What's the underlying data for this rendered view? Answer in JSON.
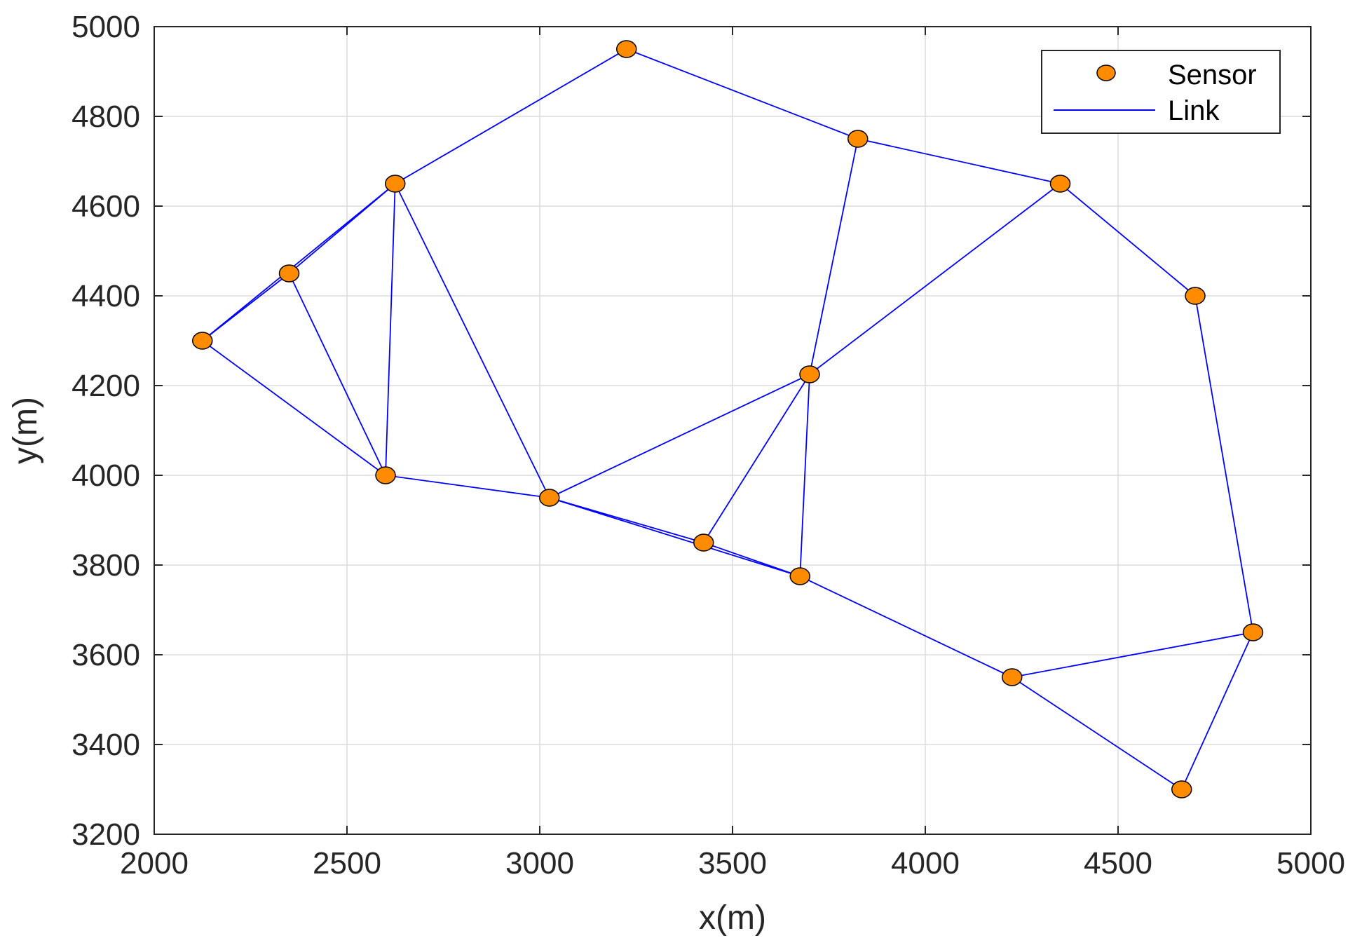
{
  "chart_data": {
    "type": "scatter",
    "xlabel": "x(m)",
    "ylabel": "y(m)",
    "xlim": [
      2000,
      5000
    ],
    "ylim": [
      3200,
      5000
    ],
    "xticks": [
      "2000",
      "2500",
      "3000",
      "3500",
      "4000",
      "4500",
      "5000"
    ],
    "yticks": [
      "3200",
      "3400",
      "3600",
      "3800",
      "4000",
      "4200",
      "4400",
      "4600",
      "4800",
      "5000"
    ],
    "grid": true,
    "legend_position": "top-right",
    "series": [
      {
        "name": "Sensor",
        "marker": "circle",
        "color": "#FF8C00",
        "points": [
          {
            "id": "A",
            "x": 2125,
            "y": 4300
          },
          {
            "id": "B",
            "x": 2350,
            "y": 4450
          },
          {
            "id": "C",
            "x": 2625,
            "y": 4650
          },
          {
            "id": "D",
            "x": 2600,
            "y": 4000
          },
          {
            "id": "E",
            "x": 3025,
            "y": 3950
          },
          {
            "id": "F",
            "x": 3225,
            "y": 4950
          },
          {
            "id": "G",
            "x": 3425,
            "y": 3850
          },
          {
            "id": "H",
            "x": 3675,
            "y": 3775
          },
          {
            "id": "I",
            "x": 3700,
            "y": 4225
          },
          {
            "id": "J",
            "x": 3825,
            "y": 4750
          },
          {
            "id": "K",
            "x": 4225,
            "y": 3550
          },
          {
            "id": "L",
            "x": 4350,
            "y": 4650
          },
          {
            "id": "M",
            "x": 4700,
            "y": 4400
          },
          {
            "id": "N",
            "x": 4850,
            "y": 3650
          },
          {
            "id": "O",
            "x": 4665,
            "y": 3300
          }
        ]
      },
      {
        "name": "Link",
        "color": "#0000FF",
        "edges": [
          [
            "A",
            "B"
          ],
          [
            "A",
            "C"
          ],
          [
            "B",
            "C"
          ],
          [
            "A",
            "D"
          ],
          [
            "B",
            "D"
          ],
          [
            "C",
            "D"
          ],
          [
            "C",
            "E"
          ],
          [
            "C",
            "F"
          ],
          [
            "D",
            "E"
          ],
          [
            "E",
            "G"
          ],
          [
            "E",
            "H"
          ],
          [
            "G",
            "H"
          ],
          [
            "E",
            "I"
          ],
          [
            "G",
            "I"
          ],
          [
            "H",
            "I"
          ],
          [
            "I",
            "J"
          ],
          [
            "I",
            "L"
          ],
          [
            "F",
            "J"
          ],
          [
            "J",
            "L"
          ],
          [
            "L",
            "M"
          ],
          [
            "M",
            "N"
          ],
          [
            "H",
            "K"
          ],
          [
            "K",
            "N"
          ],
          [
            "K",
            "O"
          ],
          [
            "N",
            "O"
          ]
        ]
      }
    ]
  }
}
